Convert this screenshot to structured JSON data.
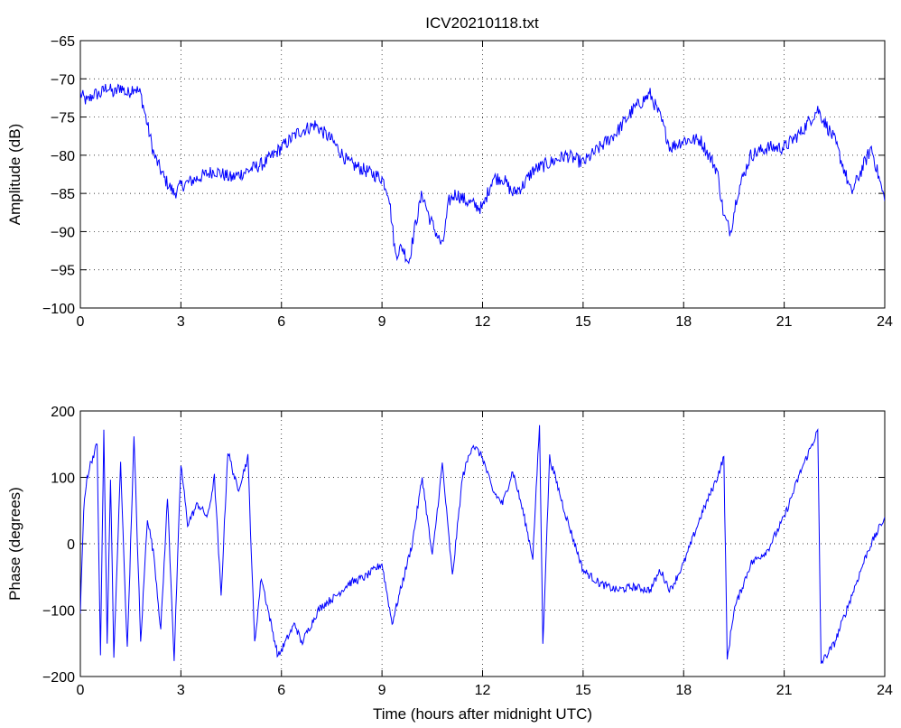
{
  "figure": {
    "title": "ICV20210118.txt",
    "xlabel": "Time (hours after midnight UTC)"
  },
  "chart_data": [
    {
      "type": "line",
      "title": "ICV20210118.txt",
      "xlabel": "",
      "ylabel": "Amplitude (dB)",
      "xlim": [
        0,
        24
      ],
      "ylim": [
        -100,
        -65
      ],
      "xticks": [
        0,
        3,
        6,
        9,
        12,
        15,
        18,
        21,
        24
      ],
      "yticks": [
        -65,
        -70,
        -75,
        -80,
        -85,
        -90,
        -95,
        -100
      ],
      "grid": true,
      "series": [
        {
          "color": "#0000ff",
          "x": [
            0,
            0.2,
            0.4,
            0.6,
            0.8,
            1.0,
            1.2,
            1.4,
            1.6,
            1.8,
            2.0,
            2.2,
            2.5,
            2.8,
            3.0,
            3.5,
            4.0,
            4.5,
            5.0,
            5.5,
            6.0,
            6.5,
            7.0,
            7.5,
            8.0,
            8.5,
            9.0,
            9.2,
            9.4,
            9.6,
            9.8,
            10.0,
            10.2,
            10.4,
            10.6,
            10.8,
            11.0,
            11.2,
            11.5,
            12.0,
            12.3,
            12.6,
            12.9,
            13.2,
            13.5,
            14.0,
            14.5,
            15.0,
            15.5,
            16.0,
            16.5,
            17.0,
            17.3,
            17.6,
            18.0,
            18.5,
            19.0,
            19.2,
            19.4,
            19.6,
            20.0,
            20.5,
            21.0,
            21.5,
            22.0,
            22.5,
            22.8,
            23.0,
            23.3,
            23.6,
            24.0
          ],
          "values": [
            -72,
            -73,
            -72,
            -72,
            -71,
            -72,
            -71,
            -72,
            -71,
            -72,
            -76,
            -80,
            -83,
            -85,
            -84,
            -83,
            -82,
            -83,
            -82,
            -81,
            -79,
            -77,
            -76,
            -78,
            -81,
            -82,
            -83,
            -85,
            -93,
            -92,
            -94,
            -89,
            -85,
            -88,
            -90,
            -92,
            -86,
            -85,
            -86,
            -87,
            -83,
            -83,
            -85,
            -84,
            -82,
            -81,
            -80,
            -81,
            -79,
            -77,
            -74,
            -72,
            -75,
            -79,
            -78,
            -78,
            -82,
            -88,
            -90,
            -85,
            -80,
            -79,
            -79,
            -77,
            -74,
            -78,
            -82,
            -85,
            -82,
            -79,
            -86
          ]
        }
      ]
    },
    {
      "type": "line",
      "title": "",
      "xlabel": "Time (hours after midnight UTC)",
      "ylabel": "Phase (degrees)",
      "xlim": [
        0,
        24
      ],
      "ylim": [
        -200,
        200
      ],
      "xticks": [
        0,
        3,
        6,
        9,
        12,
        15,
        18,
        21,
        24
      ],
      "yticks": [
        200,
        100,
        0,
        -100,
        -200
      ],
      "grid": true,
      "series": [
        {
          "color": "#0000ff",
          "x": [
            0,
            0.1,
            0.2,
            0.3,
            0.5,
            0.6,
            0.7,
            0.8,
            0.9,
            1.0,
            1.2,
            1.4,
            1.6,
            1.8,
            2.0,
            2.2,
            2.4,
            2.6,
            2.8,
            3.0,
            3.2,
            3.5,
            3.8,
            4.0,
            4.2,
            4.4,
            4.7,
            5.0,
            5.2,
            5.4,
            5.6,
            5.9,
            6.1,
            6.4,
            6.6,
            6.9,
            7.1,
            7.3,
            7.6,
            8.0,
            8.5,
            9.0,
            9.3,
            9.6,
            9.9,
            10.2,
            10.5,
            10.8,
            11.1,
            11.4,
            11.7,
            12.0,
            12.3,
            12.6,
            12.9,
            13.2,
            13.5,
            13.7,
            13.8,
            14.0,
            14.5,
            15.0,
            15.5,
            16.0,
            16.5,
            17.0,
            17.3,
            17.6,
            18.0,
            18.5,
            19.0,
            19.2,
            19.3,
            19.5,
            20.0,
            20.5,
            21.0,
            21.5,
            22.0,
            22.1,
            22.5,
            23.0,
            23.5,
            24.0
          ],
          "values": [
            -100,
            50,
            100,
            120,
            150,
            -170,
            170,
            -150,
            100,
            -170,
            120,
            -160,
            160,
            -150,
            40,
            -20,
            -130,
            70,
            -175,
            120,
            30,
            60,
            40,
            100,
            -80,
            140,
            80,
            130,
            -150,
            -50,
            -100,
            -170,
            -150,
            -120,
            -150,
            -120,
            -100,
            -90,
            -80,
            -60,
            -50,
            -30,
            -120,
            -60,
            0,
            100,
            -20,
            120,
            -50,
            100,
            150,
            130,
            80,
            60,
            110,
            50,
            -20,
            180,
            -150,
            130,
            40,
            -40,
            -60,
            -70,
            -65,
            -70,
            -40,
            -70,
            -30,
            40,
            100,
            130,
            -175,
            -100,
            -30,
            -10,
            40,
            110,
            170,
            -180,
            -150,
            -80,
            -10,
            40
          ]
        }
      ]
    }
  ]
}
